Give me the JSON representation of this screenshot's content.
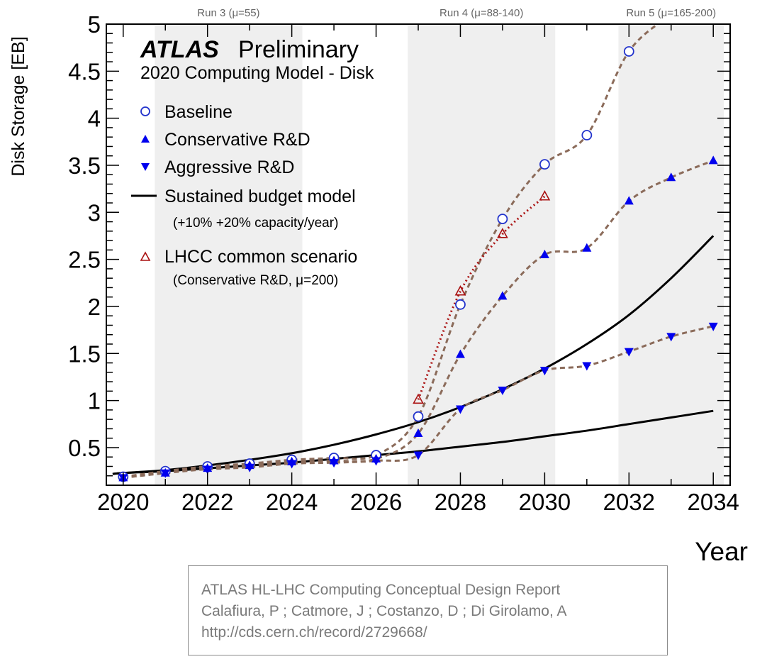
{
  "chart_data": {
    "type": "line",
    "title_prefix": "ATLAS",
    "title_suffix": "Preliminary",
    "subtitle": "2020 Computing Model - Disk",
    "xlabel": "Year",
    "ylabel": "Disk Storage [EB]",
    "xlim": [
      2019.6,
      2034.4
    ],
    "ylim": [
      0.1,
      5.0
    ],
    "x_ticks": [
      2020,
      2022,
      2024,
      2026,
      2028,
      2030,
      2032,
      2034
    ],
    "y_ticks": [
      0.5,
      1,
      1.5,
      2,
      2.5,
      3,
      3.5,
      4,
      4.5,
      5
    ],
    "y_tick_labels": [
      "0.5",
      "1",
      "1.5",
      "2",
      "2.5",
      "3",
      "3.5",
      "4",
      "4.5",
      "5"
    ],
    "runs": [
      {
        "label": "Run 3 (μ=55)",
        "shaded": [
          2020.75,
          2024.25
        ]
      },
      {
        "label": "Run 4 (μ=88-140)",
        "shaded": [
          2026.75,
          2030.25
        ]
      },
      {
        "label": "Run 5 (μ=165-200)",
        "shaded": [
          2031.75,
          2034.25
        ]
      }
    ],
    "series": [
      {
        "name": "Baseline",
        "marker": "open-circle",
        "color": "#2233cc",
        "x": [
          2020,
          2021,
          2022,
          2023,
          2024,
          2025,
          2026,
          2027,
          2028,
          2029,
          2030,
          2031,
          2032,
          2033
        ],
        "values": [
          0.19,
          0.25,
          0.3,
          0.33,
          0.37,
          0.39,
          0.42,
          0.83,
          2.02,
          2.93,
          3.51,
          3.82,
          4.71,
          5.1
        ]
      },
      {
        "name": "Conservative R&D",
        "marker": "filled-triangle-up",
        "color": "#0000ee",
        "x": [
          2020,
          2021,
          2022,
          2023,
          2024,
          2025,
          2026,
          2027,
          2028,
          2029,
          2030,
          2031,
          2032,
          2033,
          2034
        ],
        "values": [
          0.18,
          0.23,
          0.28,
          0.31,
          0.35,
          0.36,
          0.38,
          0.65,
          1.49,
          2.11,
          2.55,
          2.62,
          3.12,
          3.37,
          3.55
        ]
      },
      {
        "name": "Aggressive R&D",
        "marker": "filled-triangle-down",
        "color": "#0000ee",
        "x": [
          2020,
          2021,
          2022,
          2023,
          2024,
          2025,
          2026,
          2027,
          2028,
          2029,
          2030,
          2031,
          2032,
          2033,
          2034
        ],
        "values": [
          0.18,
          0.23,
          0.27,
          0.29,
          0.33,
          0.34,
          0.36,
          0.42,
          0.91,
          1.11,
          1.32,
          1.37,
          1.52,
          1.68,
          1.79
        ]
      },
      {
        "name": "LHCC common scenario",
        "marker": "open-triangle-up",
        "color": "#aa1111",
        "x": [
          2027,
          2028,
          2029,
          2030
        ],
        "values": [
          1.01,
          2.16,
          2.77,
          3.17
        ]
      },
      {
        "name": "Sustained budget model +20%",
        "style": "solid",
        "color": "#000000",
        "x": [
          2019.75,
          2020,
          2021,
          2022,
          2023,
          2024,
          2025,
          2026,
          2027,
          2028,
          2029,
          2030,
          2031,
          2032,
          2033,
          2034
        ],
        "values": [
          0.22,
          0.23,
          0.26,
          0.31,
          0.37,
          0.44,
          0.53,
          0.64,
          0.77,
          0.93,
          1.12,
          1.34,
          1.6,
          1.91,
          2.3,
          2.75
        ]
      },
      {
        "name": "Sustained budget model +10%",
        "style": "solid",
        "color": "#000000",
        "x": [
          2019.75,
          2020,
          2021,
          2022,
          2023,
          2024,
          2025,
          2026,
          2027,
          2028,
          2029,
          2030,
          2031,
          2032,
          2033,
          2034
        ],
        "values": [
          0.22,
          0.23,
          0.25,
          0.28,
          0.31,
          0.34,
          0.38,
          0.42,
          0.46,
          0.51,
          0.56,
          0.62,
          0.68,
          0.75,
          0.82,
          0.89
        ]
      }
    ],
    "legend_position": "top-left",
    "legend": [
      {
        "label": "Baseline",
        "symbol": "open-circle",
        "color": "#2233cc"
      },
      {
        "label": "Conservative R&D",
        "symbol": "filled-triangle-up",
        "color": "#0000ee"
      },
      {
        "label": "Aggressive R&D",
        "symbol": "filled-triangle-down",
        "color": "#0000ee"
      },
      {
        "label": "Sustained budget model",
        "sub": "(+10% +20% capacity/year)",
        "symbol": "line",
        "color": "#000000"
      },
      {
        "label": "LHCC common scenario",
        "sub": "(Conservative R&D, μ=200)",
        "symbol": "open-triangle-up",
        "color": "#aa1111"
      }
    ]
  },
  "credit": {
    "line1": "ATLAS HL-LHC Computing Conceptual Design Report",
    "line2": "Calafiura, P ; Catmore, J ; Costanzo, D ; Di Girolamo, A",
    "line3": "http://cds.cern.ch/record/2729668/"
  }
}
